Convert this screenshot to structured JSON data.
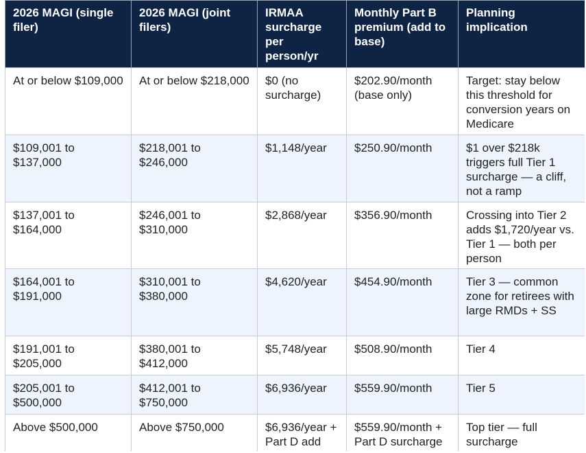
{
  "table": {
    "columns": [
      "2026 MAGI (single filer)",
      "2026 MAGI (joint filers)",
      "IRMAA surcharge per person/yr",
      "Monthly Part B premium (add to base)",
      "Planning implication"
    ],
    "rows": [
      [
        "At or below $109,000",
        "At or below $218,000",
        "$0 (no surcharge)",
        "$202.90/month (base only)",
        "Target: stay below this threshold for conversion years on Medicare"
      ],
      [
        "$109,001 to $137,000",
        "$218,001 to $246,000",
        "$1,148/year",
        "$250.90/month",
        "$1 over $218k triggers full Tier 1 surcharge — a cliff, not a ramp"
      ],
      [
        "$137,001 to $164,000",
        "$246,001 to $310,000",
        "$2,868/year",
        "$356.90/month",
        "Crossing into Tier 2 adds $1,720/year vs. Tier 1 — both per person"
      ],
      [
        "$164,001 to $191,000",
        "$310,001 to $380,000",
        "$4,620/year",
        "$454.90/month",
        "Tier 3 — common zone for retirees with large RMDs + SS"
      ],
      [
        "$191,001 to $205,000",
        "$380,001 to $412,000",
        "$5,748/year",
        "$508.90/month",
        "Tier 4"
      ],
      [
        "$205,001 to $500,000",
        "$412,001 to $750,000",
        "$6,936/year",
        "$559.90/month",
        "Tier 5"
      ],
      [
        "Above $500,000",
        "Above $750,000",
        "$6,936/year + Part D add",
        "$559.90/month + Part D surcharge",
        "Top tier — full surcharge"
      ]
    ]
  }
}
